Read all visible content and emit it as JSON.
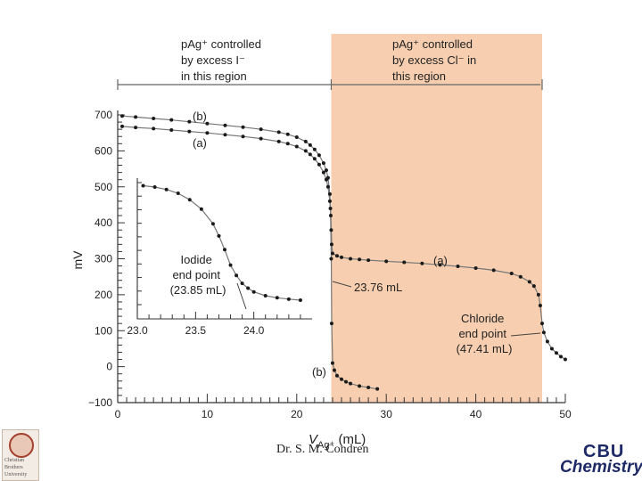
{
  "footer": {
    "author": "Dr. S. M. Condren"
  },
  "seal": {
    "lines": [
      "Christian",
      "Brothers",
      "University"
    ]
  },
  "logo": {
    "top": "CBU",
    "bottom": "Chemistry"
  },
  "colors": {
    "region": "#f7cfb0",
    "curve": "#777777",
    "point": "#1a1a1a",
    "logo": "#1e2a66"
  },
  "chart_data": [
    {
      "type": "line",
      "title": "",
      "xlabel": "V",
      "xlabel_sub": "Ag⁺",
      "xlabel_unit": " (mL)",
      "ylabel": "mV",
      "xlim": [
        0,
        50
      ],
      "ylim": [
        -100,
        700
      ],
      "x_ticks": [
        0,
        10,
        20,
        30,
        40,
        50
      ],
      "y_ticks": [
        -100,
        0,
        100,
        200,
        300,
        400,
        500,
        600,
        700
      ],
      "y_tick_labels": [
        "−100",
        "0",
        "100",
        "200",
        "300",
        "400",
        "500",
        "600",
        "700"
      ],
      "shaded_region": {
        "x_from": 23.85,
        "x_to": 47.41
      },
      "region_labels": [
        {
          "lines": [
            "pAg⁺ controlled",
            "by excess I⁻",
            "in this region"
          ]
        },
        {
          "lines": [
            "pAg⁺ controlled",
            "by excess Cl⁻ in",
            "this region"
          ]
        }
      ],
      "series": [
        {
          "name": "(a)",
          "x": [
            0.5,
            2,
            4,
            6,
            8,
            10,
            12,
            14,
            16,
            18,
            19,
            20,
            21,
            21.5,
            22,
            22.5,
            23,
            23.3,
            23.5,
            23.7,
            23.8,
            23.85,
            23.9,
            24,
            24.5,
            25,
            26,
            27,
            28,
            30,
            32,
            34,
            36,
            38,
            40,
            42,
            44,
            45,
            46,
            46.5,
            47,
            47.2,
            47.41,
            47.6,
            48,
            48.5,
            49,
            49.5,
            50
          ],
          "y": [
            668,
            665,
            662,
            658,
            654,
            650,
            645,
            640,
            634,
            626,
            620,
            612,
            600,
            590,
            578,
            562,
            540,
            520,
            500,
            460,
            420,
            380,
            340,
            315,
            308,
            304,
            300,
            298,
            296,
            293,
            290,
            287,
            283,
            279,
            274,
            268,
            259,
            250,
            236,
            224,
            200,
            170,
            120,
            95,
            70,
            50,
            38,
            28,
            20
          ]
        },
        {
          "name": "(b)",
          "x": [
            0.5,
            2,
            4,
            6,
            8,
            10,
            12,
            14,
            16,
            18,
            19,
            20,
            21,
            21.5,
            22,
            22.5,
            23,
            23.3,
            23.5,
            23.7,
            23.76,
            23.85,
            23.9,
            24,
            24.2,
            24.5,
            25,
            25.5,
            26,
            27,
            28,
            29
          ],
          "y": [
            697,
            694,
            690,
            686,
            681,
            676,
            671,
            666,
            660,
            652,
            646,
            638,
            626,
            616,
            604,
            588,
            566,
            546,
            525,
            480,
            440,
            300,
            120,
            10,
            -10,
            -25,
            -35,
            -42,
            -47,
            -54,
            -58,
            -62
          ]
        },
        {
          "name": "Inset",
          "x": [
            23.05,
            23.15,
            23.25,
            23.35,
            23.45,
            23.55,
            23.65,
            23.7,
            23.75,
            23.8,
            23.85,
            23.9,
            23.95,
            24.0,
            24.1,
            24.2,
            24.3,
            24.4
          ],
          "y": [
            516,
            512,
            505,
            494,
            475,
            448,
            405,
            370,
            330,
            285,
            255,
            232,
            218,
            207,
            196,
            190,
            186,
            183
          ]
        }
      ],
      "curve_labels": [
        "(a)",
        "(b)",
        "(a)",
        "(b)"
      ],
      "annotations": [
        {
          "lines": [
            "23.76 mL"
          ]
        },
        {
          "lines": [
            "Chloride",
            "end point",
            "(47.41 mL)"
          ]
        },
        {
          "lines": [
            "Iodide",
            "end point",
            "(23.85 mL)"
          ]
        }
      ],
      "inset": {
        "xlim": [
          23.0,
          24.5
        ],
        "ylim": [
          170,
          525
        ],
        "x_ticks": [
          23.0,
          23.5,
          24.0
        ],
        "x_tick_labels": [
          "23.0",
          "23.5",
          "24.0"
        ]
      }
    }
  ]
}
